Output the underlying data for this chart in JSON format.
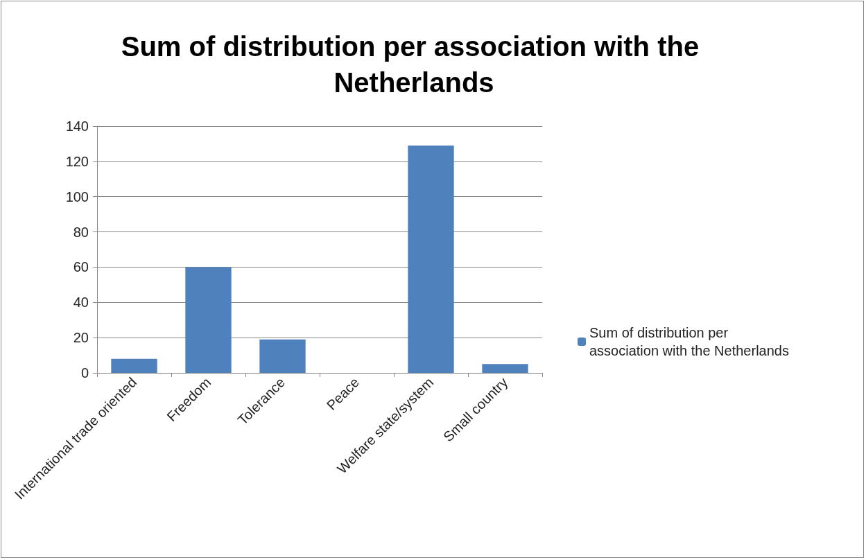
{
  "chart_data": {
    "type": "bar",
    "title": "Sum of distribution per association with the Netherlands",
    "categories": [
      "International trade oriented",
      "Freedom",
      "Tolerance",
      "Peace",
      "Welfare state/system",
      "Small country"
    ],
    "series": [
      {
        "name": "Sum of distribution per association with the Netherlands",
        "color": "#4f81bd",
        "values": [
          8,
          60,
          19,
          0,
          129,
          5
        ]
      }
    ],
    "ylim": [
      0,
      140
    ],
    "yticks": [
      0,
      20,
      40,
      60,
      80,
      100,
      120,
      140
    ],
    "grid": "y",
    "legend": "right"
  }
}
